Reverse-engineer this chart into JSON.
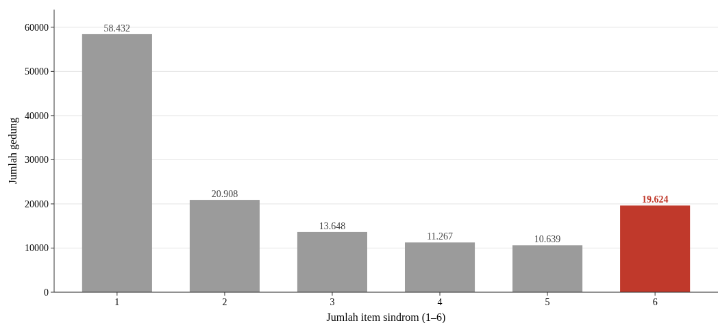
{
  "chart_data": {
    "type": "bar",
    "xlabel": "Jumlah item sindrom (1–6)",
    "ylabel": "Jumlah gedung",
    "categories": [
      "1",
      "2",
      "3",
      "4",
      "5",
      "6"
    ],
    "values": [
      58432,
      20908,
      13648,
      11267,
      10639,
      19624
    ],
    "colors": [
      "#9b9b9b",
      "#9b9b9b",
      "#9b9b9b",
      "#9b9b9b",
      "#9b9b9b",
      "#c0392b"
    ],
    "value_labels": [
      "58.432",
      "20.908",
      "13.648",
      "11.267",
      "10.639",
      "19.624"
    ],
    "ylim": [
      0,
      64000
    ],
    "yticks": [
      0,
      10000,
      20000,
      30000,
      40000,
      50000,
      60000
    ],
    "grid": "y"
  }
}
